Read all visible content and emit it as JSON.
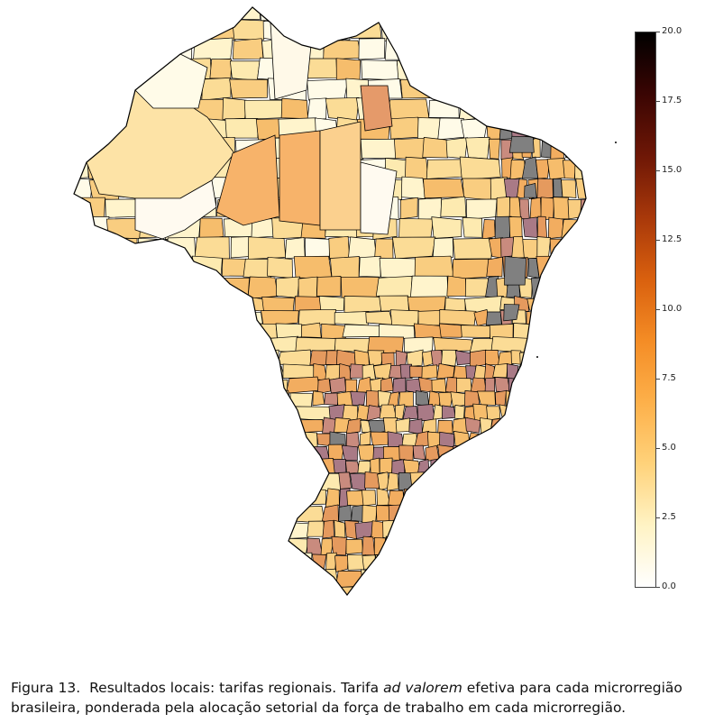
{
  "colorbar": {
    "min": 0.0,
    "max": 20.0,
    "colormap": "afmhot_r",
    "stops": [
      "#ffffff",
      "#fff3c4",
      "#ffd27a",
      "#fdb04a",
      "#f48c25",
      "#d9600e",
      "#a8380a",
      "#6e1706",
      "#3a0503",
      "#000000"
    ],
    "ticks": [
      "20.0",
      "17.5",
      "15.0",
      "12.5",
      "10.0",
      "7.5",
      "5.0",
      "2.5",
      "0.0"
    ]
  },
  "missing_color": "#808080",
  "region_fill_palette": [
    "#fffbe8",
    "#fff4cc",
    "#fdeab0",
    "#fbdc96",
    "#f9cd80",
    "#f6bd6c",
    "#f2ad60",
    "#e59a5e",
    "#c98b7e",
    "#a97a86"
  ],
  "caption": {
    "label": "Figura 13.",
    "text_before": "Resultados locais: tarifas regionais. Tarifa ",
    "emphasis": "ad valorem",
    "text_after": " efetiva para cada microrregião brasileira, ponderada pela alocação setorial da força de trabalho em cada microrregião."
  }
}
